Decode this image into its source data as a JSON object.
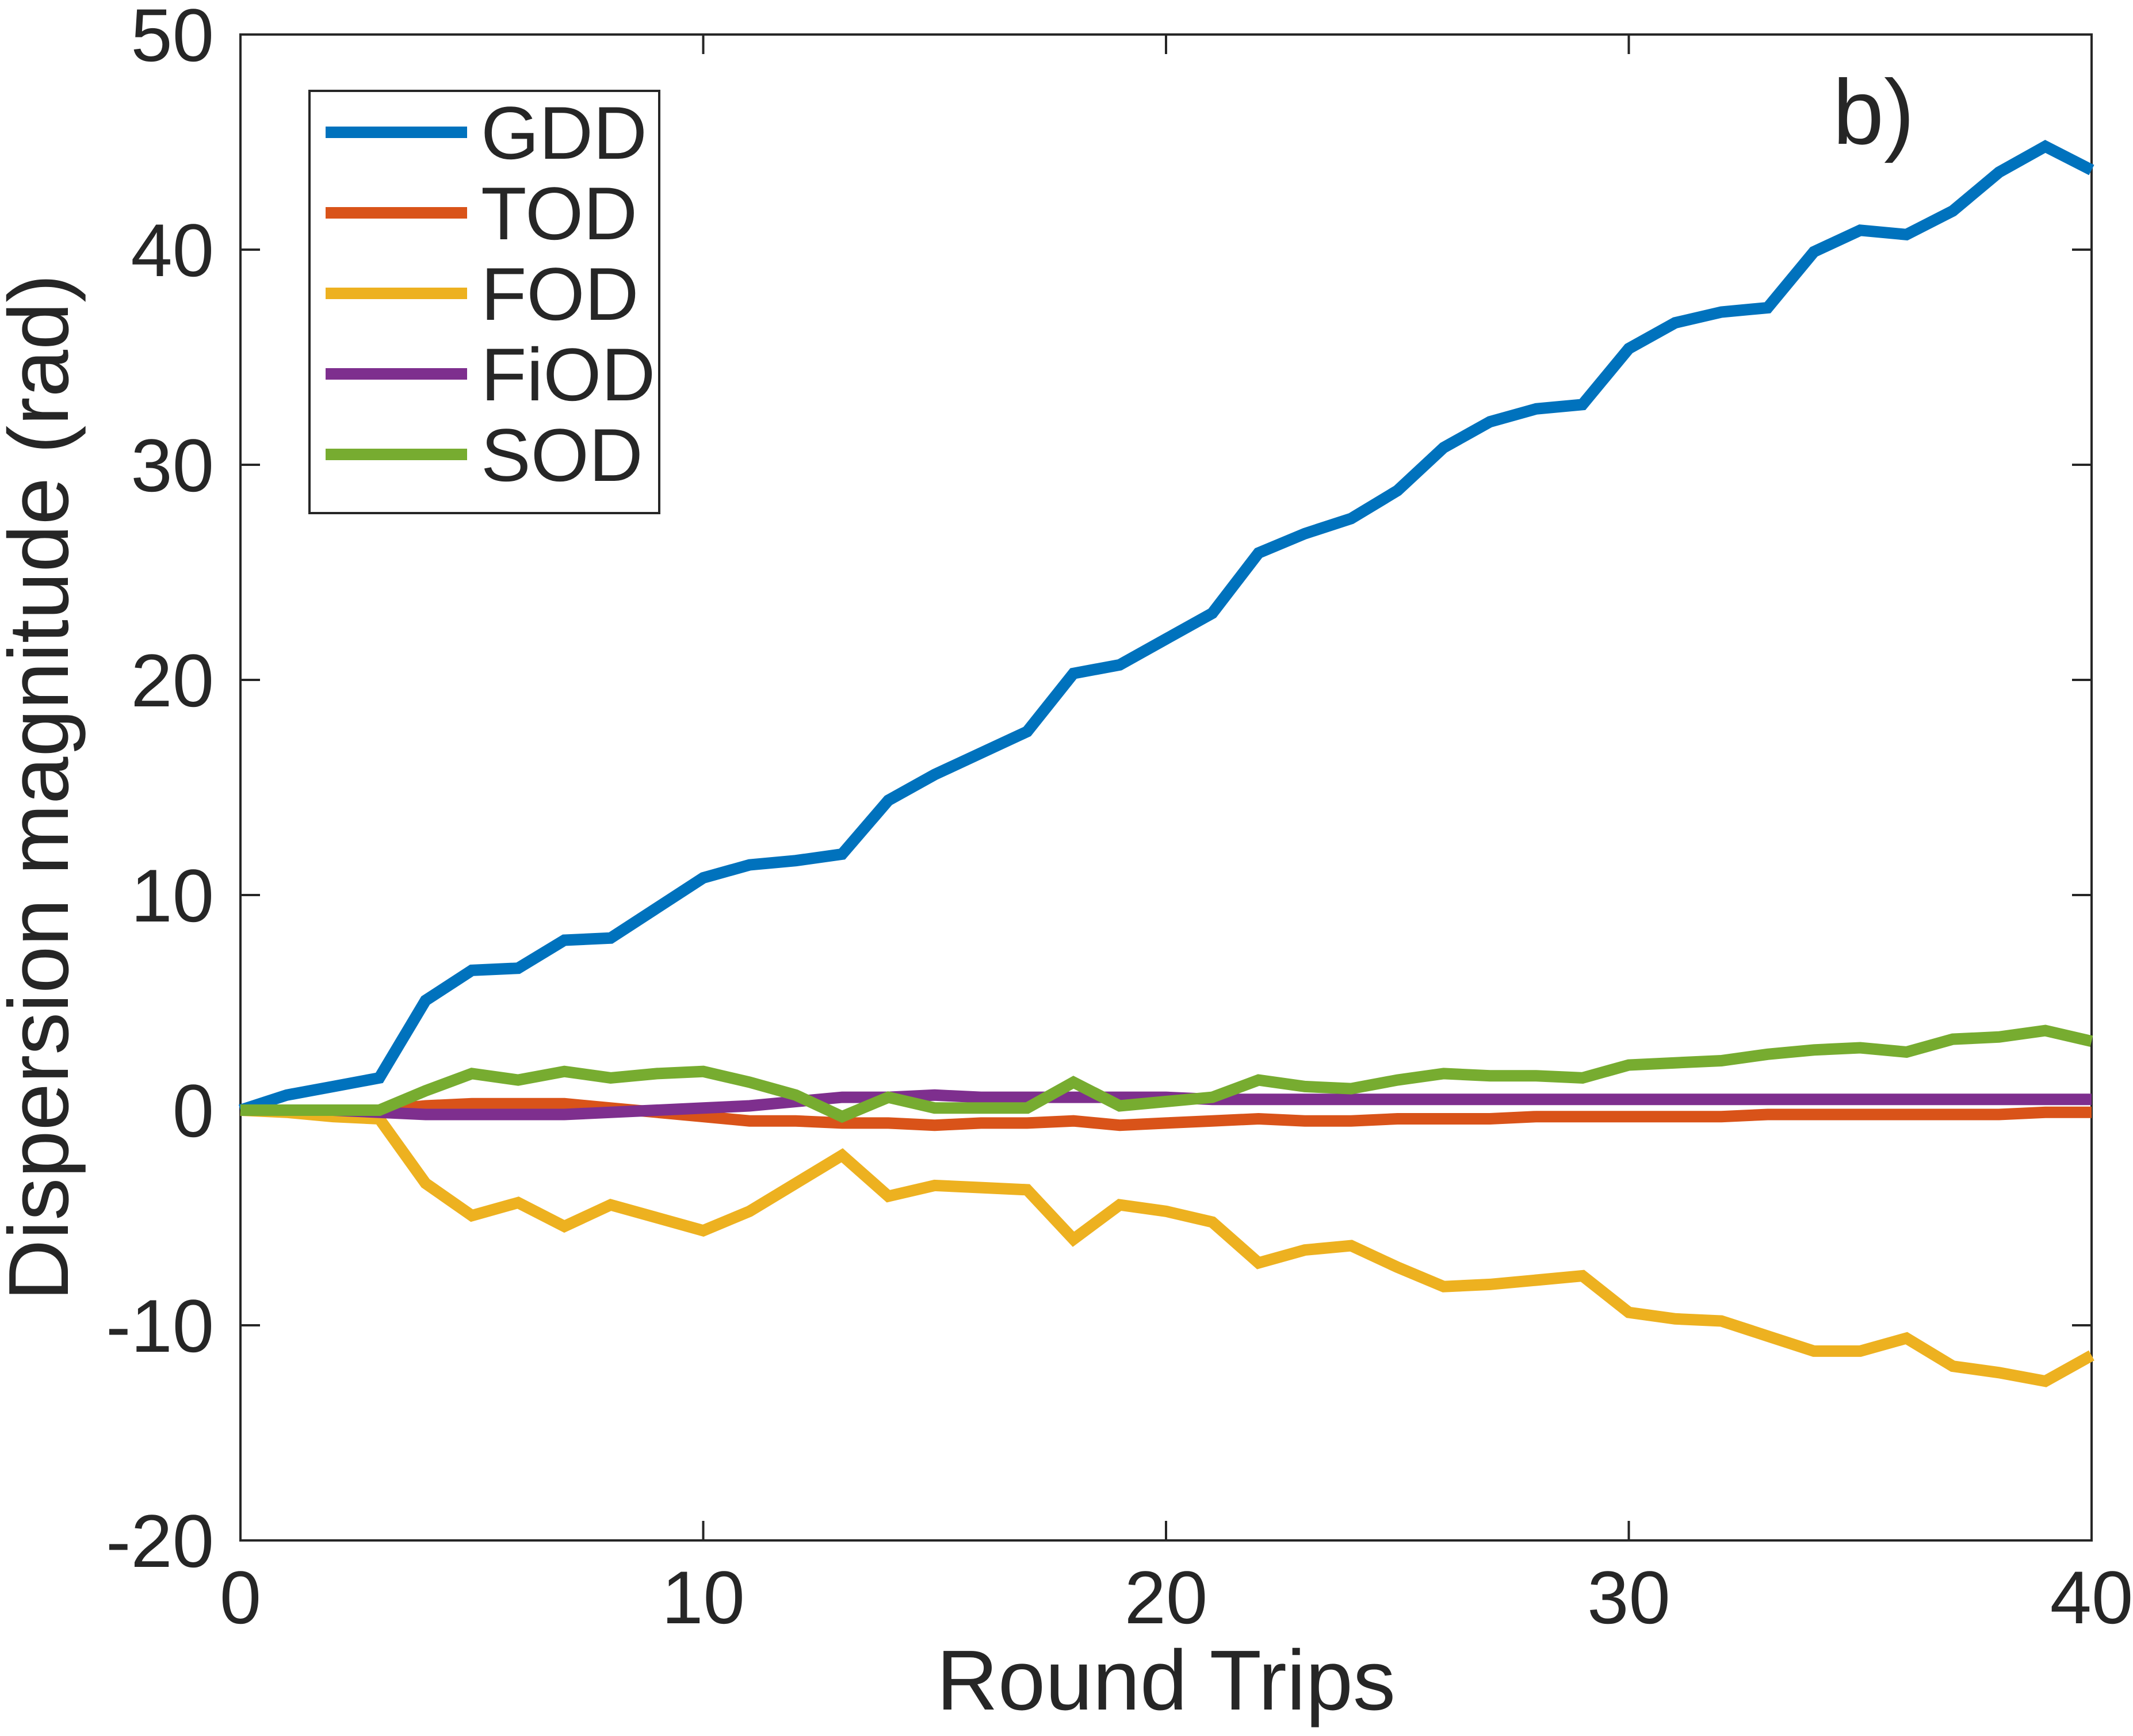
{
  "chart_data": {
    "type": "line",
    "panel_label": "b)",
    "title": "",
    "xlabel": "Round Trips",
    "ylabel": "Dispersion magnitude (rad)",
    "xlim": [
      0,
      40
    ],
    "ylim": [
      -20,
      50
    ],
    "xticks": [
      0,
      10,
      20,
      30,
      40
    ],
    "yticks": [
      -20,
      -10,
      0,
      10,
      20,
      30,
      40,
      50
    ],
    "xtick_labels": [
      "0",
      "10",
      "20",
      "30",
      "40"
    ],
    "ytick_labels": [
      "-20",
      "-10",
      "0",
      "10",
      "20",
      "30",
      "40",
      "50"
    ],
    "grid": false,
    "legend_position": "top-left",
    "x": [
      0,
      1,
      2,
      3,
      4,
      5,
      6,
      7,
      8,
      9,
      10,
      11,
      12,
      13,
      14,
      15,
      16,
      17,
      18,
      19,
      20,
      21,
      22,
      23,
      24,
      25,
      26,
      27,
      28,
      29,
      30,
      31,
      32,
      33,
      34,
      35,
      36,
      37,
      38,
      39,
      40
    ],
    "series": [
      {
        "name": "GDD",
        "color": "#0072BD",
        "values": [
          0,
          0.7,
          1.1,
          1.5,
          5.1,
          6.5,
          6.6,
          7.9,
          8.0,
          9.4,
          10.8,
          11.4,
          11.6,
          11.9,
          14.4,
          15.6,
          16.6,
          17.6,
          20.3,
          20.7,
          21.9,
          23.1,
          25.9,
          26.8,
          27.5,
          28.8,
          30.8,
          32.0,
          32.6,
          32.8,
          35.4,
          36.6,
          37.1,
          37.3,
          39.9,
          40.9,
          40.7,
          41.8,
          43.6,
          44.8,
          43.7
        ]
      },
      {
        "name": "TOD",
        "color": "#D95319",
        "values": [
          0,
          0,
          0,
          0,
          0.2,
          0.3,
          0.3,
          0.3,
          0.1,
          -0.1,
          -0.3,
          -0.5,
          -0.5,
          -0.6,
          -0.6,
          -0.7,
          -0.6,
          -0.6,
          -0.5,
          -0.7,
          -0.6,
          -0.5,
          -0.4,
          -0.5,
          -0.5,
          -0.4,
          -0.4,
          -0.4,
          -0.3,
          -0.3,
          -0.3,
          -0.3,
          -0.3,
          -0.2,
          -0.2,
          -0.2,
          -0.2,
          -0.2,
          -0.2,
          -0.1,
          -0.1
        ]
      },
      {
        "name": "FOD",
        "color": "#EDB120",
        "values": [
          0,
          -0.1,
          -0.3,
          -0.4,
          -3.4,
          -4.9,
          -4.3,
          -5.4,
          -4.4,
          -5.0,
          -5.6,
          -4.7,
          -3.4,
          -2.1,
          -4.0,
          -3.5,
          -3.6,
          -3.7,
          -6.0,
          -4.4,
          -4.7,
          -5.2,
          -7.1,
          -6.5,
          -6.3,
          -7.3,
          -8.2,
          -8.1,
          -7.9,
          -7.7,
          -9.4,
          -9.7,
          -9.8,
          -10.5,
          -11.2,
          -11.2,
          -10.6,
          -11.9,
          -12.2,
          -12.6,
          -11.4
        ]
      },
      {
        "name": "FiOD",
        "color": "#7E2F8E",
        "values": [
          0,
          0,
          0,
          -0.1,
          -0.2,
          -0.2,
          -0.2,
          -0.2,
          -0.1,
          0,
          0.1,
          0.2,
          0.4,
          0.6,
          0.6,
          0.7,
          0.6,
          0.6,
          0.6,
          0.6,
          0.6,
          0.5,
          0.5,
          0.5,
          0.5,
          0.5,
          0.5,
          0.5,
          0.5,
          0.5,
          0.5,
          0.5,
          0.5,
          0.5,
          0.5,
          0.5,
          0.5,
          0.5,
          0.5,
          0.5,
          0.5
        ]
      },
      {
        "name": "SOD",
        "color": "#77AC30",
        "values": [
          0,
          0,
          0,
          0,
          0.9,
          1.7,
          1.4,
          1.8,
          1.5,
          1.7,
          1.8,
          1.3,
          0.7,
          -0.3,
          0.6,
          0.1,
          0.1,
          0.1,
          1.3,
          0.2,
          0.4,
          0.6,
          1.4,
          1.1,
          1.0,
          1.4,
          1.7,
          1.6,
          1.6,
          1.5,
          2.1,
          2.2,
          2.3,
          2.6,
          2.8,
          2.9,
          2.7,
          3.3,
          3.4,
          3.7,
          3.2
        ]
      }
    ]
  }
}
